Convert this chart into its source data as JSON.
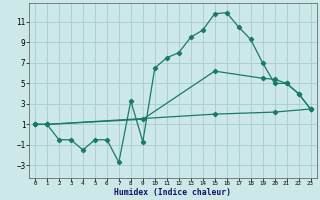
{
  "xlabel": "Humidex (Indice chaleur)",
  "bg_color": "#cce8e8",
  "grid_color": "#aacccc",
  "line_color": "#1a7a6a",
  "x_ticks": [
    0,
    1,
    2,
    3,
    4,
    5,
    6,
    7,
    8,
    9,
    10,
    11,
    12,
    13,
    14,
    15,
    16,
    17,
    18,
    19,
    20,
    21,
    22,
    23
  ],
  "y_ticks": [
    -3,
    -1,
    1,
    3,
    5,
    7,
    9,
    11
  ],
  "ylim": [
    -4.2,
    12.8
  ],
  "xlim": [
    -0.5,
    23.5
  ],
  "line1_x": [
    0,
    1,
    2,
    3,
    4,
    5,
    6,
    7,
    8,
    9,
    10,
    11,
    12,
    13,
    14,
    15,
    16,
    17,
    18,
    19,
    20,
    21,
    22,
    23
  ],
  "line1_y": [
    1.0,
    1.0,
    -0.5,
    -0.5,
    -1.5,
    -0.5,
    -0.5,
    -2.7,
    3.3,
    -0.7,
    6.5,
    7.5,
    8.0,
    9.5,
    10.2,
    11.8,
    11.9,
    10.5,
    9.3,
    7.0,
    5.0,
    5.0,
    4.0,
    2.5
  ],
  "line2_x": [
    0,
    1,
    9,
    15,
    19,
    20,
    21,
    22,
    23
  ],
  "line2_y": [
    1.0,
    1.0,
    1.5,
    6.2,
    5.5,
    5.4,
    5.0,
    4.0,
    2.5
  ],
  "line3_x": [
    0,
    1,
    15,
    20,
    23
  ],
  "line3_y": [
    1.0,
    1.0,
    2.0,
    2.2,
    2.5
  ]
}
